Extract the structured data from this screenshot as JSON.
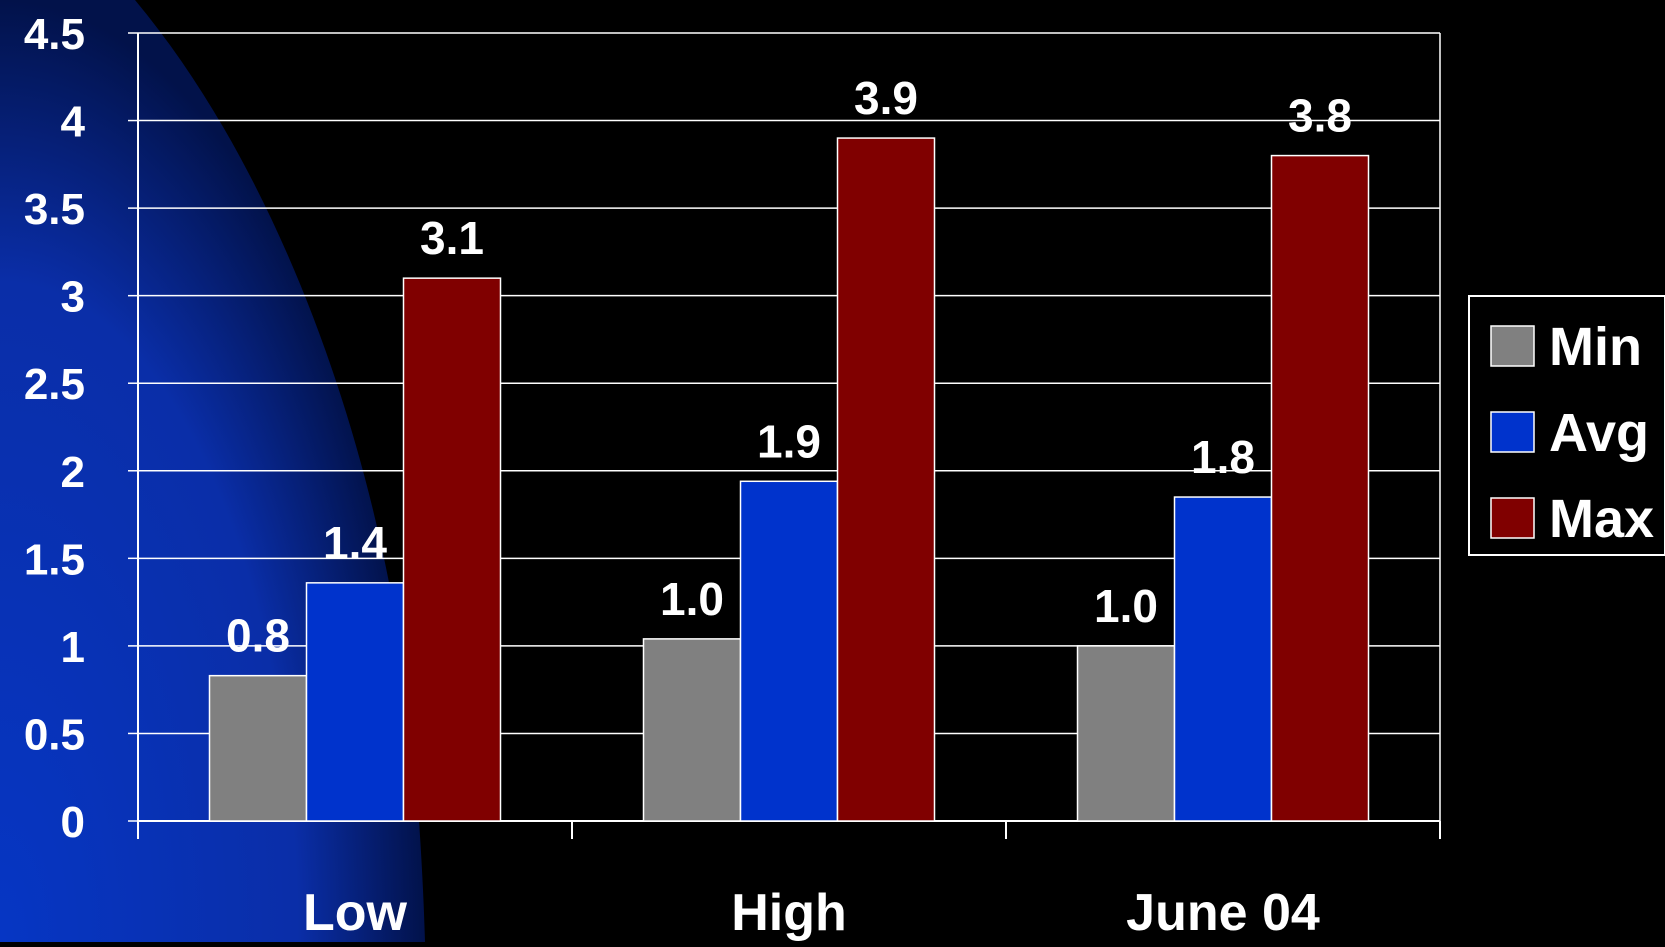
{
  "chart_data": {
    "type": "bar",
    "categories": [
      "Low",
      "High",
      "June 04"
    ],
    "series": [
      {
        "name": "Min",
        "color": "#808080",
        "values": [
          0.83,
          1.04,
          1.0
        ],
        "labels": [
          "0.8",
          "1.0",
          "1.0"
        ]
      },
      {
        "name": "Avg",
        "color": "#0033cc",
        "values": [
          1.36,
          1.94,
          1.85
        ],
        "labels": [
          "1.4",
          "1.9",
          "1.8"
        ]
      },
      {
        "name": "Max",
        "color": "#800000",
        "values": [
          3.1,
          3.9,
          3.8
        ],
        "labels": [
          "3.1",
          "3.9",
          "3.8"
        ]
      }
    ],
    "title": "",
    "xlabel": "",
    "ylabel": "",
    "ylim": [
      0,
      4.5
    ],
    "yticks": [
      "0",
      "0.5",
      "1",
      "1.5",
      "2",
      "2.5",
      "3",
      "3.5",
      "4",
      "4.5"
    ],
    "grid": true,
    "legend_position": "right",
    "background_color": "#000000",
    "decoration_color": "#0033cc"
  }
}
